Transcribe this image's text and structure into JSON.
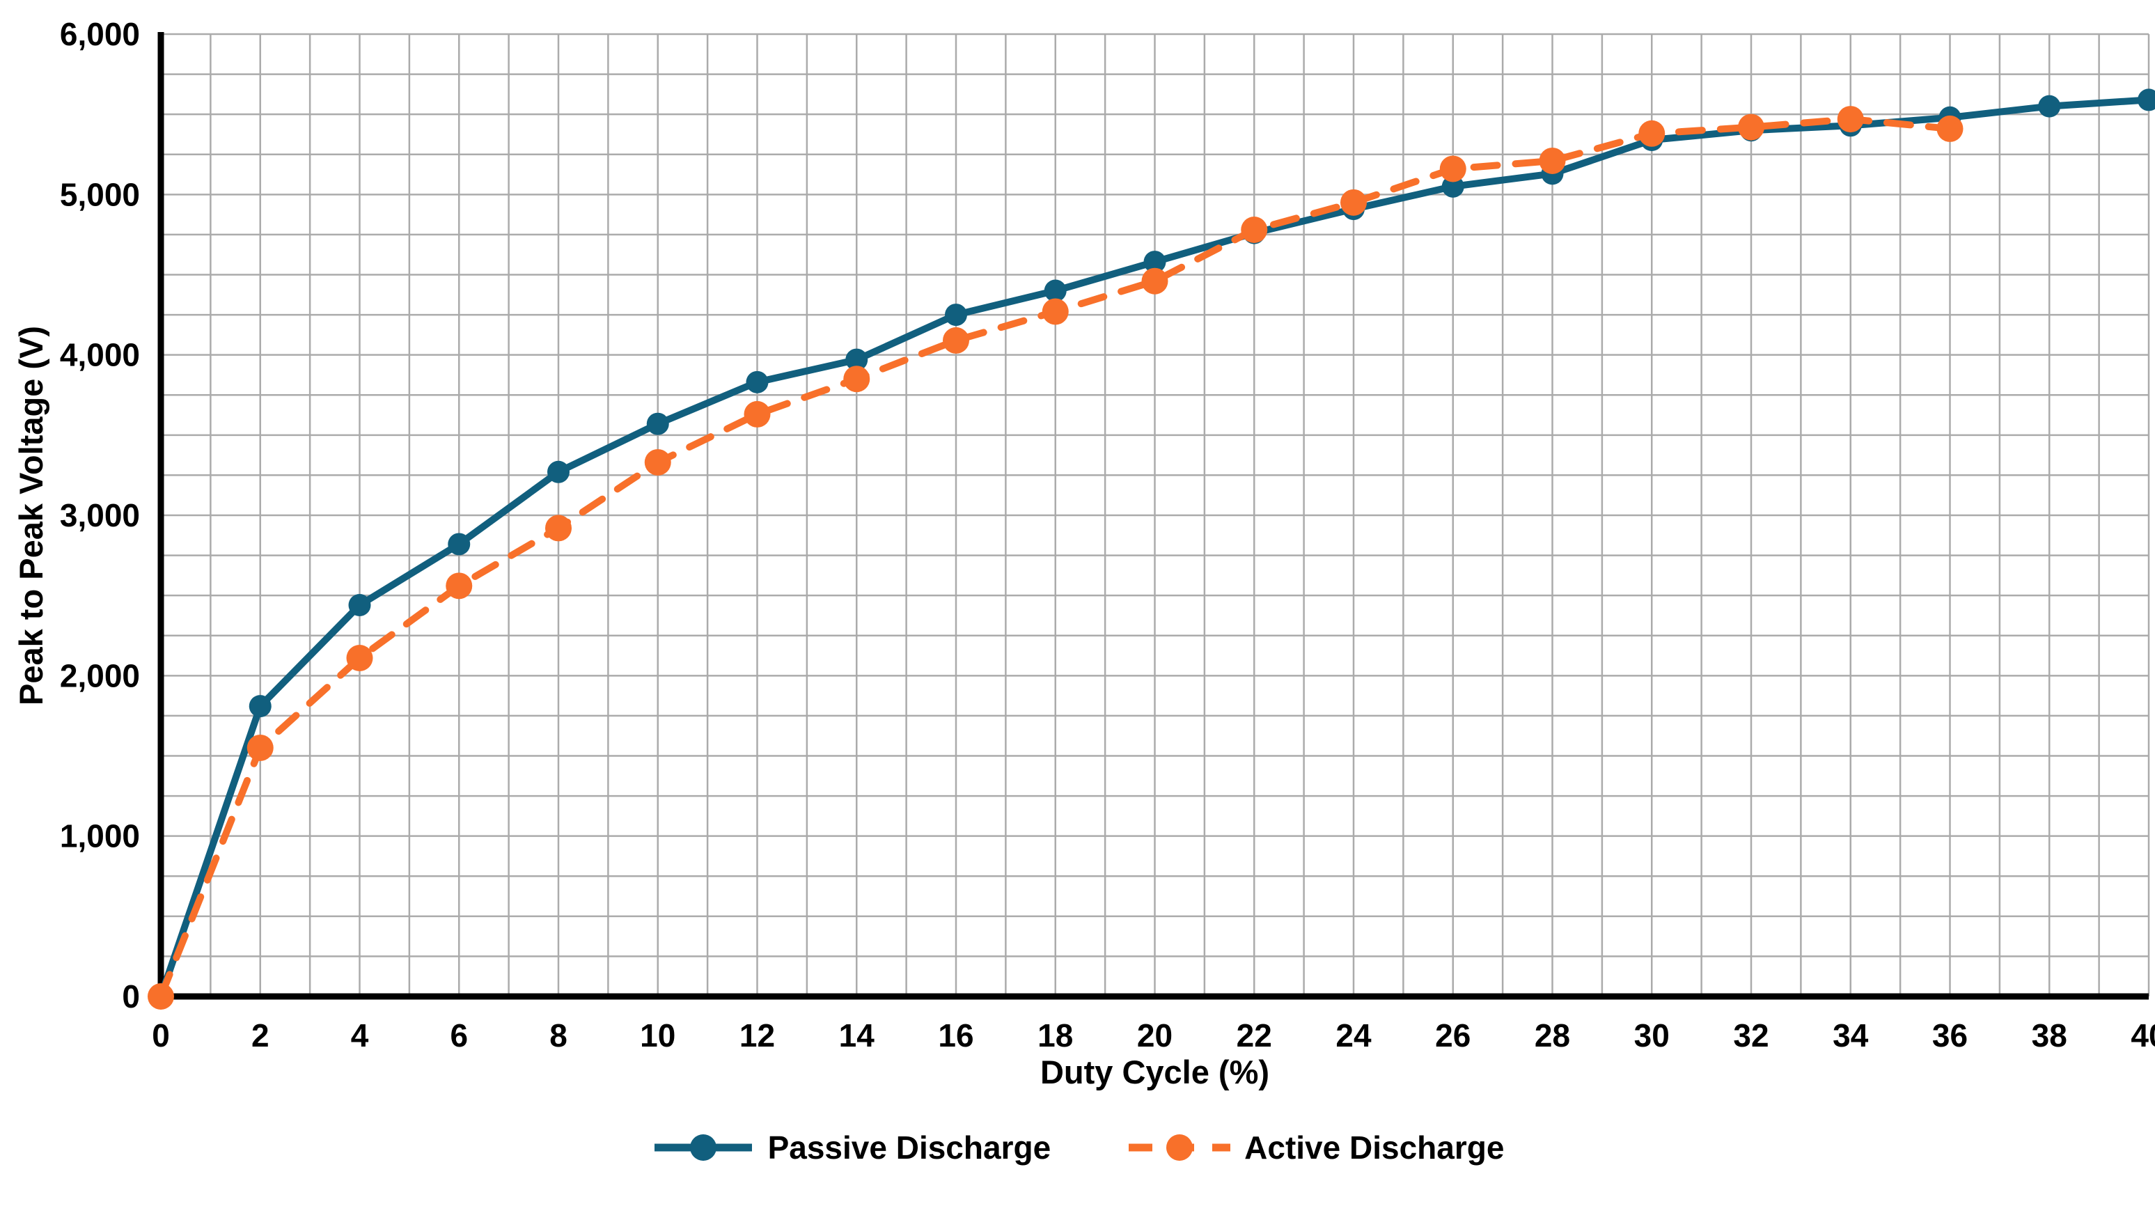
{
  "chart_data": {
    "type": "line",
    "title": "",
    "xlabel": "Duty Cycle (%)",
    "ylabel": "Peak to Peak Voltage (V)",
    "xlim": [
      0,
      40
    ],
    "ylim": [
      0,
      6000
    ],
    "x_major_tick_step": 2,
    "x_minor_grid_step": 1,
    "y_major_tick_step": 1000,
    "y_minor_grid_step": 250,
    "x_tick_labels": [
      "0",
      "2",
      "4",
      "6",
      "8",
      "10",
      "12",
      "14",
      "16",
      "18",
      "20",
      "22",
      "24",
      "26",
      "28",
      "30",
      "32",
      "34",
      "36",
      "38",
      "40"
    ],
    "y_tick_labels": [
      "0",
      "1,000",
      "2,000",
      "3,000",
      "4,000",
      "5,000",
      "6,000"
    ],
    "grid": true,
    "legend_position": "bottom",
    "series": [
      {
        "name": "Passive Discharge",
        "color": "#115F7E",
        "line_style": "solid",
        "marker": "circle",
        "x": [
          0,
          2,
          4,
          6,
          8,
          10,
          12,
          14,
          16,
          18,
          20,
          22,
          24,
          26,
          28,
          30,
          32,
          34,
          36,
          38,
          40
        ],
        "values": [
          0,
          1810,
          2440,
          2820,
          3270,
          3570,
          3830,
          3970,
          4250,
          4400,
          4580,
          4760,
          4910,
          5050,
          5130,
          5340,
          5400,
          5430,
          5480,
          5550,
          5590
        ]
      },
      {
        "name": "Active Discharge",
        "color": "#F8702A",
        "line_style": "dashed",
        "marker": "circle",
        "x": [
          0,
          2,
          4,
          6,
          8,
          10,
          12,
          14,
          16,
          18,
          20,
          22,
          24,
          26,
          28,
          30,
          32,
          34,
          36
        ],
        "values": [
          0,
          1550,
          2110,
          2560,
          2920,
          3330,
          3630,
          3850,
          4090,
          4270,
          4460,
          4780,
          4950,
          5160,
          5210,
          5380,
          5420,
          5470,
          5410
        ]
      }
    ]
  },
  "colors": {
    "axis": "#000000",
    "gridline": "#ABABAB",
    "tick_label": "#000000",
    "background": "#FFFFFF"
  }
}
